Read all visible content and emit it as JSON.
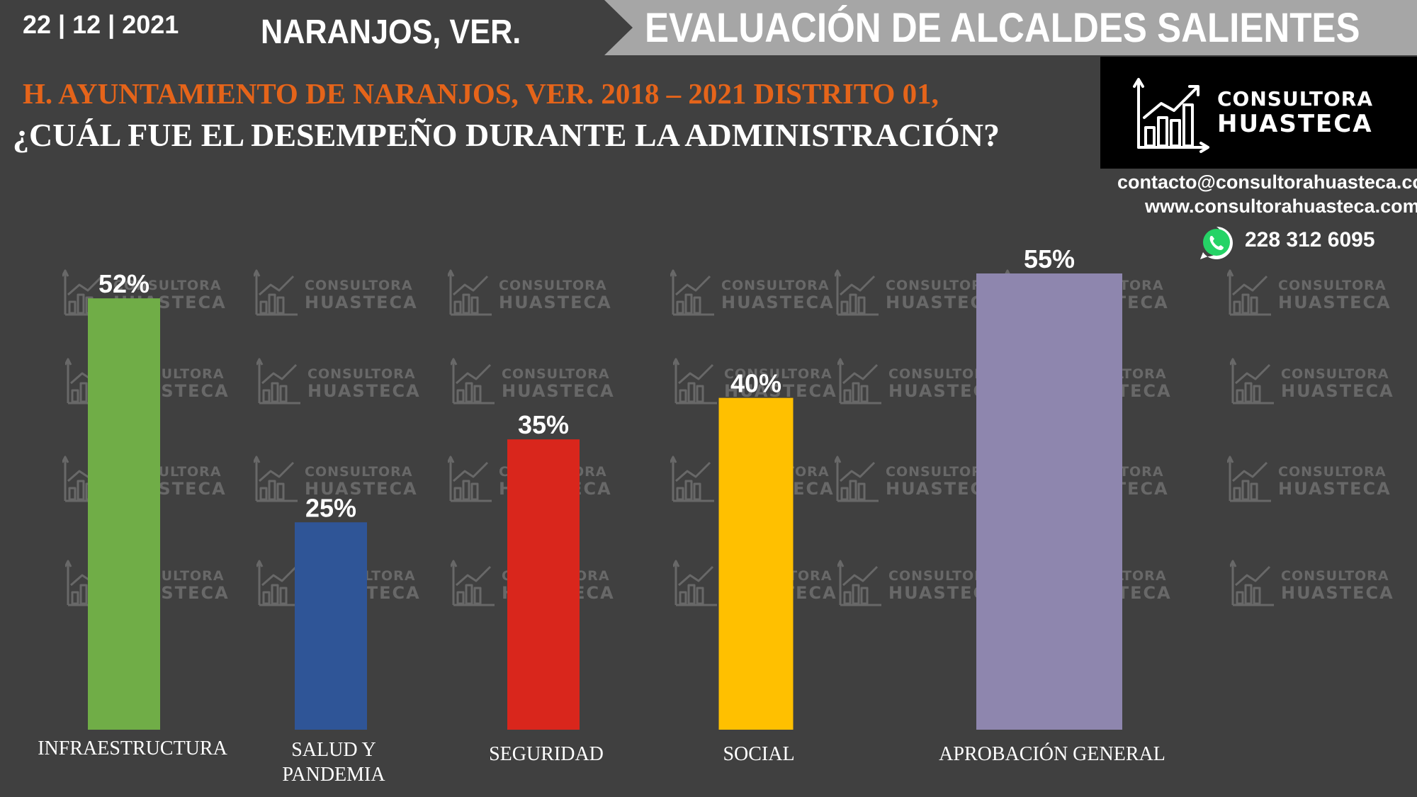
{
  "header": {
    "date": "22 | 12 | 2021",
    "city": "NARANJOS, VER.",
    "banner_title": "EVALUACIÓN DE ALCALDES SALIENTES"
  },
  "headline": "H. AYUNTAMIENTO DE NARANJOS, VER. 2018 – 2021 DISTRITO 01,",
  "question": "¿CUÁL FUE EL DESEMPEÑO DURANTE LA ADMINISTRACIÓN?",
  "brand": {
    "logo_line1": "CONSULTORA",
    "logo_line2": "HUASTECA",
    "email": "contacto@consultorahuasteca.com",
    "website": "www.consultorahuasteca.com",
    "phone": "228 312 6095",
    "phone_icon": "whatsapp-icon"
  },
  "watermark": {
    "line1": "CONSULTORA",
    "line2": "HUASTECA"
  },
  "colors": {
    "background": "#404040",
    "headline": "#e5641a",
    "banner": "#a6a6a6"
  },
  "chart_data": {
    "type": "bar",
    "categories": [
      "INFRAESTRUCTURA",
      "SALUD Y PANDEMIA",
      "SEGURIDAD",
      "SOCIAL",
      "APROBACIÓN GENERAL"
    ],
    "values": [
      52,
      25,
      35,
      40,
      55
    ],
    "labels": [
      "52%",
      "25%",
      "35%",
      "40%",
      "55%"
    ],
    "colors": [
      "#70ad47",
      "#2f5597",
      "#d9261c",
      "#ffc000",
      "#8e86ae"
    ],
    "unit": "%",
    "ylim": [
      0,
      55
    ],
    "grid": false,
    "legend": "none"
  }
}
